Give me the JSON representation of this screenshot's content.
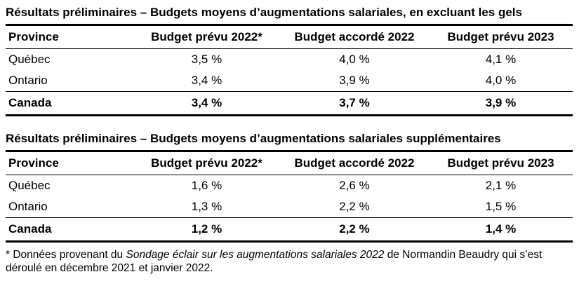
{
  "tables": [
    {
      "title": "Résultats préliminaires – Budgets moyens d’augmentations salariales, en excluant les gels",
      "headers": [
        "Province",
        "Budget prévu 2022*",
        "Budget accordé 2022",
        "Budget prévu 2023"
      ],
      "rows": [
        [
          "Québec",
          "3,5 %",
          "4,0 %",
          "4,1 %"
        ],
        [
          "Ontario",
          "3,4 %",
          "3,9 %",
          "4,0 %"
        ]
      ],
      "total_row": [
        "Canada",
        "3,4 %",
        "3,7 %",
        "3,9 %"
      ]
    },
    {
      "title": "Résultats préliminaires – Budgets moyens d’augmentations salariales supplémentaires",
      "headers": [
        "Province",
        "Budget prévu 2022*",
        "Budget accordé 2022",
        "Budget prévu 2023"
      ],
      "rows": [
        [
          "Québec",
          "1,6 %",
          "2,6 %",
          "2,1 %"
        ],
        [
          "Ontario",
          "1,3 %",
          "2,2 %",
          "1,5 %"
        ]
      ],
      "total_row": [
        "Canada",
        "1,2 %",
        "2,2 %",
        "1,4 %"
      ]
    }
  ],
  "footnote": {
    "prefix": "* Données provenant du ",
    "italic": "Sondage éclair sur les augmentations salariales 2022",
    "suffix": " de Normandin Beaudry qui s’est déroulé en décembre 2021 et janvier 2022."
  }
}
